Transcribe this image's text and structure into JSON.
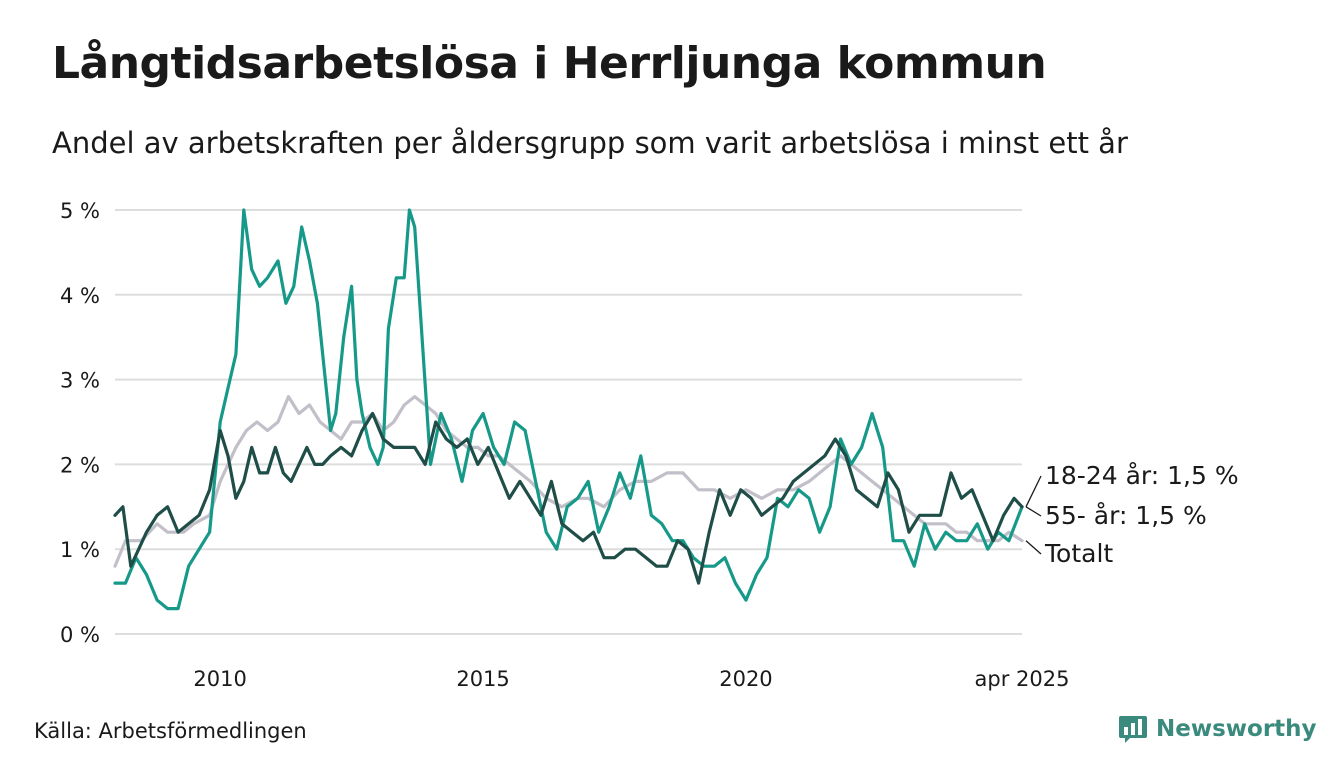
{
  "header": {
    "title": "Långtidsarbetslösa i Herrljunga kommun",
    "subtitle": "Andel av arbetskraften per åldersgrupp som varit arbetslösa i minst ett år"
  },
  "footer": {
    "source": "Källa: Arbetsförmedlingen",
    "brand": "Newsworthy"
  },
  "colors": {
    "series_18_24": "#17998a",
    "series_55": "#1f4d47",
    "series_total": "#c2bfc9",
    "grid": "#dddddd",
    "brand": "#3a8a7e"
  },
  "chart_data": {
    "type": "line",
    "x_unit": "year (decimal)",
    "xlim": [
      2008.0,
      2025.25
    ],
    "ylim": [
      0,
      5
    ],
    "y_ticks": [
      {
        "value": 0,
        "label": "0 %"
      },
      {
        "value": 1,
        "label": "1 %"
      },
      {
        "value": 2,
        "label": "2 %"
      },
      {
        "value": 3,
        "label": "3 %"
      },
      {
        "value": 4,
        "label": "4 %"
      },
      {
        "value": 5,
        "label": "5 %"
      }
    ],
    "x_ticks": [
      {
        "value": 2010,
        "label": "2010"
      },
      {
        "value": 2015,
        "label": "2015"
      },
      {
        "value": 2020,
        "label": "2020"
      },
      {
        "value": 2025.25,
        "label": "apr 2025"
      }
    ],
    "grid": true,
    "series": [
      {
        "key": "total",
        "end_label": "Totalt",
        "x": [
          2008.0,
          2008.2,
          2008.5,
          2008.8,
          2009.0,
          2009.3,
          2009.5,
          2009.8,
          2010.0,
          2010.3,
          2010.5,
          2010.7,
          2010.9,
          2011.1,
          2011.3,
          2011.5,
          2011.7,
          2011.9,
          2012.1,
          2012.3,
          2012.5,
          2012.7,
          2012.9,
          2013.1,
          2013.3,
          2013.5,
          2013.7,
          2013.9,
          2014.1,
          2014.3,
          2014.5,
          2014.7,
          2014.9,
          2015.1,
          2015.3,
          2015.5,
          2015.7,
          2015.9,
          2016.2,
          2016.5,
          2016.8,
          2017.0,
          2017.3,
          2017.6,
          2017.9,
          2018.2,
          2018.5,
          2018.8,
          2019.1,
          2019.4,
          2019.7,
          2020.0,
          2020.3,
          2020.6,
          2020.9,
          2021.2,
          2021.4,
          2021.6,
          2021.8,
          2022.0,
          2022.2,
          2022.4,
          2022.6,
          2022.8,
          2023.0,
          2023.2,
          2023.4,
          2023.6,
          2023.8,
          2024.0,
          2024.2,
          2024.4,
          2024.6,
          2024.8,
          2025.0,
          2025.25
        ],
        "y": [
          0.8,
          1.1,
          1.1,
          1.3,
          1.2,
          1.2,
          1.3,
          1.4,
          1.8,
          2.2,
          2.4,
          2.5,
          2.4,
          2.5,
          2.8,
          2.6,
          2.7,
          2.5,
          2.4,
          2.3,
          2.5,
          2.5,
          2.6,
          2.4,
          2.5,
          2.7,
          2.8,
          2.7,
          2.6,
          2.4,
          2.3,
          2.2,
          2.2,
          2.1,
          2.1,
          2.0,
          1.9,
          1.8,
          1.6,
          1.5,
          1.6,
          1.6,
          1.5,
          1.7,
          1.8,
          1.8,
          1.9,
          1.9,
          1.7,
          1.7,
          1.6,
          1.7,
          1.6,
          1.7,
          1.7,
          1.8,
          1.9,
          2.0,
          2.1,
          2.0,
          1.9,
          1.8,
          1.7,
          1.6,
          1.5,
          1.4,
          1.3,
          1.3,
          1.3,
          1.2,
          1.2,
          1.1,
          1.1,
          1.1,
          1.2,
          1.1
        ]
      },
      {
        "key": "age_18_24",
        "end_label": "18-24 år: 1,5 %",
        "x": [
          2008.0,
          2008.2,
          2008.4,
          2008.6,
          2008.8,
          2009.0,
          2009.2,
          2009.4,
          2009.6,
          2009.8,
          2010.0,
          2010.15,
          2010.3,
          2010.45,
          2010.6,
          2010.75,
          2010.9,
          2011.1,
          2011.25,
          2011.4,
          2011.55,
          2011.7,
          2011.85,
          2012.0,
          2012.1,
          2012.2,
          2012.35,
          2012.5,
          2012.6,
          2012.7,
          2012.85,
          2013.0,
          2013.1,
          2013.2,
          2013.35,
          2013.5,
          2013.6,
          2013.7,
          2013.85,
          2014.0,
          2014.2,
          2014.4,
          2014.6,
          2014.8,
          2015.0,
          2015.2,
          2015.4,
          2015.6,
          2015.8,
          2016.0,
          2016.2,
          2016.4,
          2016.6,
          2016.8,
          2017.0,
          2017.2,
          2017.4,
          2017.6,
          2017.8,
          2018.0,
          2018.2,
          2018.4,
          2018.6,
          2018.8,
          2019.0,
          2019.2,
          2019.4,
          2019.6,
          2019.8,
          2020.0,
          2020.2,
          2020.4,
          2020.6,
          2020.8,
          2021.0,
          2021.2,
          2021.4,
          2021.6,
          2021.8,
          2022.0,
          2022.2,
          2022.4,
          2022.6,
          2022.8,
          2023.0,
          2023.2,
          2023.4,
          2023.6,
          2023.8,
          2024.0,
          2024.2,
          2024.4,
          2024.6,
          2024.8,
          2025.0,
          2025.25
        ],
        "y": [
          0.6,
          0.6,
          0.9,
          0.7,
          0.4,
          0.3,
          0.3,
          0.8,
          1.0,
          1.2,
          2.5,
          2.9,
          3.3,
          5.0,
          4.3,
          4.1,
          4.2,
          4.4,
          3.9,
          4.1,
          4.8,
          4.4,
          3.9,
          3.0,
          2.4,
          2.6,
          3.5,
          4.1,
          3.0,
          2.6,
          2.2,
          2.0,
          2.2,
          3.6,
          4.2,
          4.2,
          5.0,
          4.8,
          3.4,
          2.0,
          2.6,
          2.3,
          1.8,
          2.4,
          2.6,
          2.2,
          2.0,
          2.5,
          2.4,
          1.8,
          1.2,
          1.0,
          1.5,
          1.6,
          1.8,
          1.2,
          1.5,
          1.9,
          1.6,
          2.1,
          1.4,
          1.3,
          1.1,
          1.1,
          0.9,
          0.8,
          0.8,
          0.9,
          0.6,
          0.4,
          0.7,
          0.9,
          1.6,
          1.5,
          1.7,
          1.6,
          1.2,
          1.5,
          2.3,
          2.0,
          2.2,
          2.6,
          2.2,
          1.1,
          1.1,
          0.8,
          1.3,
          1.0,
          1.2,
          1.1,
          1.1,
          1.3,
          1.0,
          1.2,
          1.1,
          1.5
        ]
      },
      {
        "key": "age_55",
        "end_label": "55- år: 1,5 %",
        "x": [
          2008.0,
          2008.15,
          2008.3,
          2008.45,
          2008.6,
          2008.8,
          2009.0,
          2009.2,
          2009.4,
          2009.6,
          2009.8,
          2010.0,
          2010.15,
          2010.3,
          2010.45,
          2010.6,
          2010.75,
          2010.9,
          2011.05,
          2011.2,
          2011.35,
          2011.5,
          2011.65,
          2011.8,
          2011.95,
          2012.1,
          2012.3,
          2012.5,
          2012.7,
          2012.9,
          2013.1,
          2013.3,
          2013.5,
          2013.7,
          2013.9,
          2014.1,
          2014.3,
          2014.5,
          2014.7,
          2014.9,
          2015.1,
          2015.3,
          2015.5,
          2015.7,
          2015.9,
          2016.1,
          2016.3,
          2016.5,
          2016.7,
          2016.9,
          2017.1,
          2017.3,
          2017.5,
          2017.7,
          2017.9,
          2018.1,
          2018.3,
          2018.5,
          2018.7,
          2018.9,
          2019.1,
          2019.3,
          2019.5,
          2019.7,
          2019.9,
          2020.1,
          2020.3,
          2020.5,
          2020.7,
          2020.9,
          2021.1,
          2021.3,
          2021.5,
          2021.7,
          2021.9,
          2022.1,
          2022.3,
          2022.5,
          2022.7,
          2022.9,
          2023.1,
          2023.3,
          2023.5,
          2023.7,
          2023.9,
          2024.1,
          2024.3,
          2024.5,
          2024.7,
          2024.9,
          2025.1,
          2025.25
        ],
        "y": [
          1.4,
          1.5,
          0.8,
          1.0,
          1.2,
          1.4,
          1.5,
          1.2,
          1.3,
          1.4,
          1.7,
          2.4,
          2.1,
          1.6,
          1.8,
          2.2,
          1.9,
          1.9,
          2.2,
          1.9,
          1.8,
          2.0,
          2.2,
          2.0,
          2.0,
          2.1,
          2.2,
          2.1,
          2.4,
          2.6,
          2.3,
          2.2,
          2.2,
          2.2,
          2.0,
          2.5,
          2.3,
          2.2,
          2.3,
          2.0,
          2.2,
          1.9,
          1.6,
          1.8,
          1.6,
          1.4,
          1.8,
          1.3,
          1.2,
          1.1,
          1.2,
          0.9,
          0.9,
          1.0,
          1.0,
          0.9,
          0.8,
          0.8,
          1.1,
          1.0,
          0.6,
          1.2,
          1.7,
          1.4,
          1.7,
          1.6,
          1.4,
          1.5,
          1.6,
          1.8,
          1.9,
          2.0,
          2.1,
          2.3,
          2.1,
          1.7,
          1.6,
          1.5,
          1.9,
          1.7,
          1.2,
          1.4,
          1.4,
          1.4,
          1.9,
          1.6,
          1.7,
          1.4,
          1.1,
          1.4,
          1.6,
          1.5
        ]
      }
    ]
  }
}
